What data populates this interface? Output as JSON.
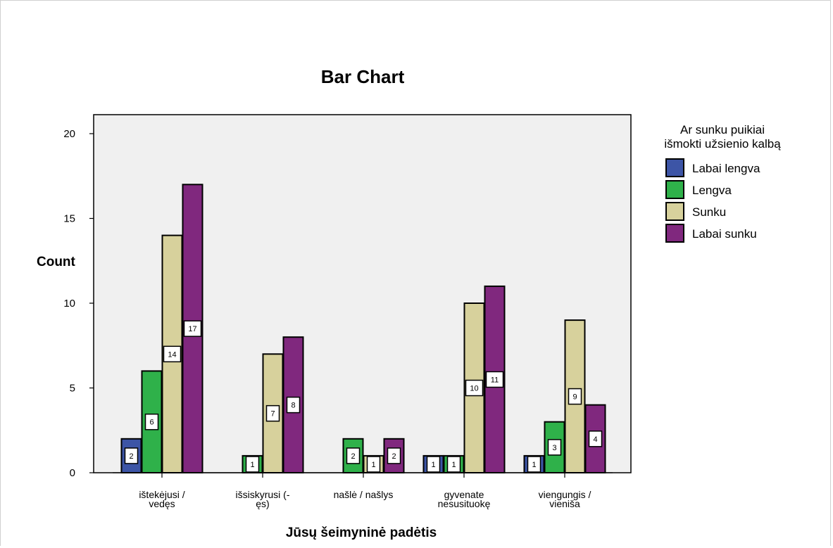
{
  "chart_data": {
    "type": "bar",
    "title": "Bar Chart",
    "xlabel": "Jūsų šeimyninė padėtis",
    "ylabel": "Count",
    "ylim": [
      0,
      20
    ],
    "yticks": [
      0,
      5,
      10,
      15,
      20
    ],
    "categories": [
      [
        "ištekėjusi /",
        "vedęs"
      ],
      [
        "išsiskyrusi (-",
        "ęs)"
      ],
      [
        "našlė / našlys"
      ],
      [
        "gyvenate",
        "nesusituokę"
      ],
      [
        "viengungis /",
        "vieniša"
      ]
    ],
    "legend_title": [
      "Ar sunku puikiai",
      "išmokti užsienio kalbą"
    ],
    "legend_position": "right",
    "series": [
      {
        "name": "Labai lengva",
        "color": "#3d55a6",
        "values": [
          2,
          0,
          0,
          1,
          1
        ]
      },
      {
        "name": "Lengva",
        "color": "#2fb14a",
        "values": [
          6,
          1,
          2,
          1,
          3
        ]
      },
      {
        "name": "Sunku",
        "color": "#d7d19c",
        "values": [
          14,
          7,
          1,
          10,
          9
        ]
      },
      {
        "name": "Labai sunku",
        "color": "#80287e",
        "values": [
          17,
          8,
          2,
          11,
          4
        ]
      }
    ],
    "plot_background": "#f0f0f0"
  }
}
